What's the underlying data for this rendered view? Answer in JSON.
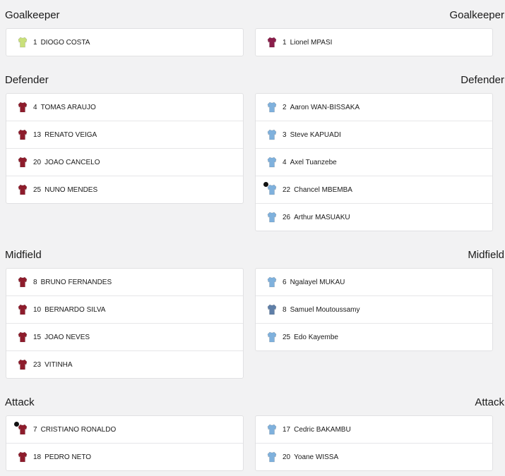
{
  "sections": [
    {
      "home_title": "Goalkeeper",
      "away_title": "Goalkeeper",
      "home": [
        {
          "number": 1,
          "name": "DIOGO COSTA",
          "shirt": "#c9e07a"
        }
      ],
      "away": [
        {
          "number": 1,
          "name": "Lionel MPASI",
          "shirt": "#8a1d4a"
        }
      ]
    },
    {
      "home_title": "Defender",
      "away_title": "Defender",
      "home": [
        {
          "number": 4,
          "name": "TOMAS ARAUJO",
          "shirt": "#8e1c2c"
        },
        {
          "number": 13,
          "name": "RENATO VEIGA",
          "shirt": "#8e1c2c"
        },
        {
          "number": 20,
          "name": "JOAO CANCELO",
          "shirt": "#8e1c2c"
        },
        {
          "number": 25,
          "name": "NUNO MENDES",
          "shirt": "#8e1c2c"
        }
      ],
      "away": [
        {
          "number": 2,
          "name": "Aaron WAN-BISSAKA",
          "shirt": "#7fb1dd"
        },
        {
          "number": 3,
          "name": "Steve KAPUADI",
          "shirt": "#7fb1dd"
        },
        {
          "number": 4,
          "name": "Axel Tuanzebe",
          "shirt": "#7fb1dd"
        },
        {
          "number": 22,
          "name": "Chancel MBEMBA",
          "shirt": "#7fb1dd",
          "captain": true
        },
        {
          "number": 26,
          "name": "Arthur MASUAKU",
          "shirt": "#7fb1dd"
        }
      ]
    },
    {
      "home_title": "Midfield",
      "away_title": "Midfield",
      "home": [
        {
          "number": 8,
          "name": "BRUNO FERNANDES",
          "shirt": "#8e1c2c"
        },
        {
          "number": 10,
          "name": "BERNARDO SILVA",
          "shirt": "#8e1c2c"
        },
        {
          "number": 15,
          "name": "JOAO NEVES",
          "shirt": "#8e1c2c"
        },
        {
          "number": 23,
          "name": "VITINHA",
          "shirt": "#8e1c2c"
        }
      ],
      "away": [
        {
          "number": 6,
          "name": "Ngalayel MUKAU",
          "shirt": "#7fb1dd"
        },
        {
          "number": 8,
          "name": "Samuel Moutoussamy",
          "shirt": "#5f7fa8"
        },
        {
          "number": 25,
          "name": "Edo Kayembe",
          "shirt": "#7fb1dd"
        }
      ]
    },
    {
      "home_title": "Attack",
      "away_title": "Attack",
      "home": [
        {
          "number": 7,
          "name": "CRISTIANO RONALDO",
          "shirt": "#8e1c2c",
          "captain": true
        },
        {
          "number": 18,
          "name": "PEDRO NETO",
          "shirt": "#8e1c2c"
        }
      ],
      "away": [
        {
          "number": 17,
          "name": "Cedric BAKAMBU",
          "shirt": "#7fb1dd"
        },
        {
          "number": 20,
          "name": "Yoane WISSA",
          "shirt": "#7fb1dd"
        }
      ]
    }
  ]
}
